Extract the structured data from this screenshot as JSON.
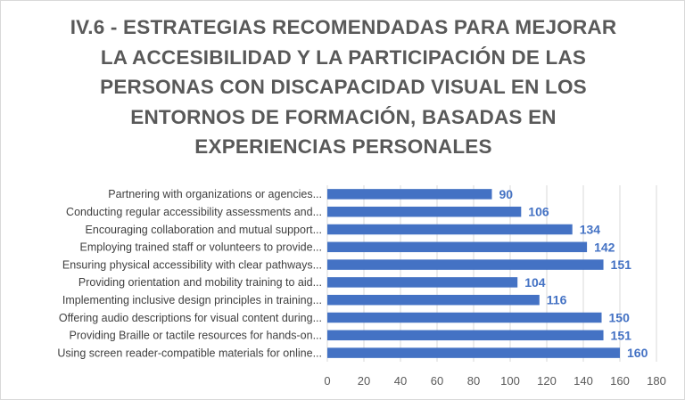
{
  "chart_data": {
    "type": "bar",
    "orientation": "horizontal",
    "title": "IV.6 - ESTRATEGIAS RECOMENDADAS PARA MEJORAR LA ACCESIBILIDAD Y LA PARTICIPACIÓN DE LAS PERSONAS CON DISCAPACIDAD VISUAL EN LOS ENTORNOS DE FORMACIÓN, BASADAS EN EXPERIENCIAS PERSONALES",
    "categories": [
      "Partnering with organizations or agencies...",
      "Conducting regular accessibility assessments and...",
      "Encouraging collaboration and mutual support...",
      "Employing trained staff or volunteers to provide...",
      "Ensuring physical accessibility with clear pathways...",
      "Providing orientation and mobility training to aid...",
      "Implementing inclusive design principles in training...",
      "Offering audio descriptions for visual content during...",
      "Providing Braille or tactile resources for hands-on...",
      "Using screen reader-compatible materials for online..."
    ],
    "values": [
      90,
      106,
      134,
      142,
      151,
      104,
      116,
      150,
      151,
      160
    ],
    "xlim": [
      0,
      180
    ],
    "xticks": [
      0,
      20,
      40,
      60,
      80,
      100,
      120,
      140,
      160,
      180
    ],
    "grid": "vertical",
    "bar_color": "#4472c4",
    "data_labels": true
  }
}
